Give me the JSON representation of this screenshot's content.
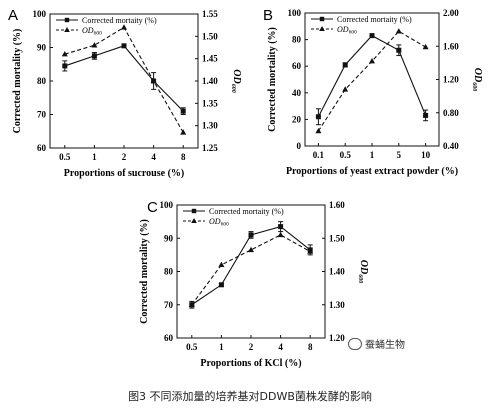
{
  "chart_data": [
    {
      "panel": "A",
      "type": "line",
      "categories": [
        "0.5",
        "1",
        "2",
        "4",
        "8"
      ],
      "xlabel": "Proportions of sucrouse (%)",
      "ylabel_left": "Corrected mortality (%)",
      "ylabel_right": "OD600",
      "left_ylim": [
        60,
        100
      ],
      "left_ticks": [
        "60",
        "70",
        "80",
        "90",
        "100"
      ],
      "right_ylim": [
        1.25,
        1.55
      ],
      "right_ticks": [
        "1.25",
        "1.30",
        "1.35",
        "1.40",
        "1.45",
        "1.50",
        "1.55"
      ],
      "legend_position": "top-left",
      "series": [
        {
          "name": "Corrected mortaity (%)",
          "axis": "left",
          "style": "solid",
          "marker": "square",
          "values": [
            84.5,
            87.5,
            90.5,
            80,
            71
          ],
          "errors": [
            1.5,
            1,
            0.5,
            2.5,
            1
          ]
        },
        {
          "name": "OD600",
          "axis": "right",
          "style": "dashed",
          "marker": "triangle",
          "values": [
            1.46,
            1.48,
            1.52,
            1.4,
            1.285
          ]
        }
      ]
    },
    {
      "panel": "B",
      "type": "line",
      "categories": [
        "0.1",
        "0.5",
        "1",
        "5",
        "10"
      ],
      "xlabel": "Proportions of yeast extract powder (%)",
      "ylabel_left": "Corrected mortality (%)",
      "ylabel_right": "OD600",
      "left_ylim": [
        0,
        100
      ],
      "left_ticks": [
        "0",
        "20",
        "40",
        "60",
        "80",
        "100"
      ],
      "right_ylim": [
        0.4,
        2.0
      ],
      "right_ticks": [
        "0.40",
        "0.80",
        "1.20",
        "1.60",
        "2.00"
      ],
      "legend_position": "top-left",
      "series": [
        {
          "name": "Corrected mortaity (%)",
          "axis": "left",
          "style": "solid",
          "marker": "square",
          "values": [
            22,
            61,
            83,
            72,
            23
          ],
          "errors": [
            6,
            1.5,
            1,
            4,
            4
          ]
        },
        {
          "name": "OD600",
          "axis": "right",
          "style": "dashed",
          "marker": "triangle",
          "values": [
            0.58,
            1.08,
            1.42,
            1.78,
            1.59
          ]
        }
      ]
    },
    {
      "panel": "C",
      "type": "line",
      "categories": [
        "0.5",
        "1",
        "2",
        "4",
        "8"
      ],
      "xlabel": "Proportions of KCl (%)",
      "ylabel_left": "Corrected mortality (%)",
      "ylabel_right": "OD600",
      "left_ylim": [
        60,
        100
      ],
      "left_ticks": [
        "60",
        "70",
        "80",
        "90",
        "100"
      ],
      "right_ylim": [
        1.2,
        1.6
      ],
      "right_ticks": [
        "1.20",
        "1.30",
        "1.40",
        "1.50",
        "1.60"
      ],
      "legend_position": "top-left",
      "series": [
        {
          "name": "Corrected mortaity (%)",
          "axis": "left",
          "style": "solid",
          "marker": "square",
          "values": [
            70,
            76,
            91,
            93.5,
            86.5
          ],
          "errors": [
            1,
            0.5,
            1,
            1.5,
            1.5
          ]
        },
        {
          "name": "OD600",
          "axis": "right",
          "style": "dashed",
          "marker": "triangle",
          "values": [
            1.3,
            1.42,
            1.465,
            1.51,
            1.46
          ]
        }
      ]
    }
  ],
  "caption": "图3  不同添加量的培养基对DDWB菌株发酵的影响",
  "watermark": "蚕蛹生物"
}
